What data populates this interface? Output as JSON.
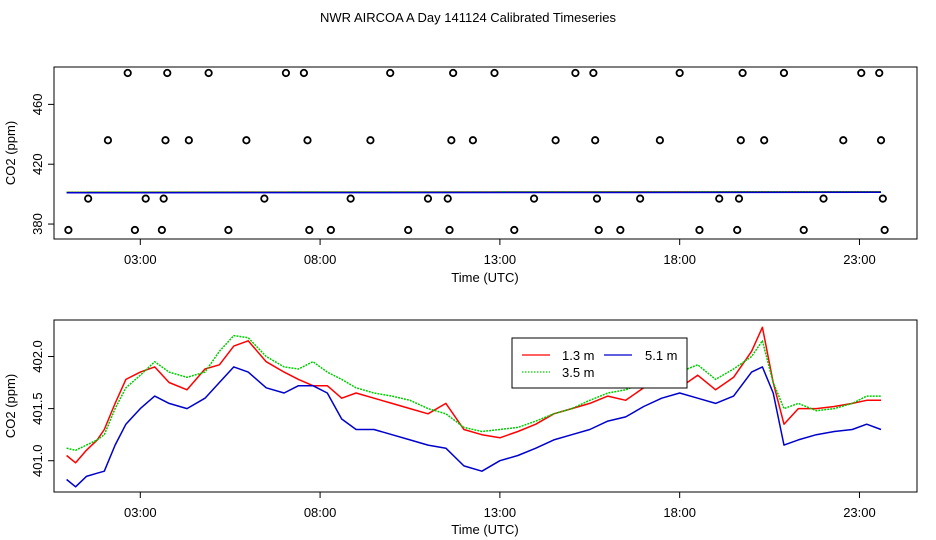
{
  "title": "NWR AIRCOA A  Day 141124  Calibrated Timeseries",
  "chart_data": [
    {
      "type": "scatter",
      "name": "top-panel",
      "xlabel": "Time (UTC)",
      "ylabel": "CO2 (ppm)",
      "xlim": [
        0.6,
        24.6
      ],
      "ylim": [
        370,
        485
      ],
      "xticks": [
        3,
        8,
        13,
        18,
        23
      ],
      "xtick_labels": [
        "03:00",
        "08:00",
        "13:00",
        "18:00",
        "23:00"
      ],
      "yticks": [
        380,
        420,
        460
      ],
      "ytick_labels": [
        "380",
        "420",
        "460"
      ],
      "scatter_points": [
        [
          1.0,
          376
        ],
        [
          1.55,
          397
        ],
        [
          2.1,
          436
        ],
        [
          2.65,
          481
        ],
        [
          2.85,
          376
        ],
        [
          3.15,
          397
        ],
        [
          3.6,
          376
        ],
        [
          3.65,
          397
        ],
        [
          3.7,
          436
        ],
        [
          3.75,
          481
        ],
        [
          4.35,
          436
        ],
        [
          4.9,
          481
        ],
        [
          5.45,
          376
        ],
        [
          5.95,
          436
        ],
        [
          6.45,
          397
        ],
        [
          7.05,
          481
        ],
        [
          7.55,
          481
        ],
        [
          7.65,
          436
        ],
        [
          7.7,
          376
        ],
        [
          8.3,
          376
        ],
        [
          8.85,
          397
        ],
        [
          9.4,
          436
        ],
        [
          9.95,
          481
        ],
        [
          10.45,
          376
        ],
        [
          11.0,
          397
        ],
        [
          11.55,
          397
        ],
        [
          11.6,
          376
        ],
        [
          11.65,
          436
        ],
        [
          11.7,
          481
        ],
        [
          12.25,
          436
        ],
        [
          12.85,
          481
        ],
        [
          13.4,
          376
        ],
        [
          13.95,
          397
        ],
        [
          14.55,
          436
        ],
        [
          15.1,
          481
        ],
        [
          15.6,
          481
        ],
        [
          15.65,
          436
        ],
        [
          15.7,
          397
        ],
        [
          15.75,
          376
        ],
        [
          16.35,
          376
        ],
        [
          16.9,
          397
        ],
        [
          17.45,
          436
        ],
        [
          18.0,
          481
        ],
        [
          18.55,
          376
        ],
        [
          19.1,
          397
        ],
        [
          19.6,
          376
        ],
        [
          19.65,
          397
        ],
        [
          19.7,
          436
        ],
        [
          19.75,
          481
        ],
        [
          20.35,
          436
        ],
        [
          20.9,
          481
        ],
        [
          21.45,
          376
        ],
        [
          22.0,
          397
        ],
        [
          22.55,
          436
        ],
        [
          23.05,
          481
        ],
        [
          23.55,
          481
        ],
        [
          23.6,
          436
        ],
        [
          23.65,
          397
        ],
        [
          23.7,
          376
        ]
      ],
      "flat_series": [
        {
          "name": "1.3 m",
          "color": "#ff0000",
          "x": [
            0.95,
            23.6
          ],
          "values": [
            401.2,
            401.6
          ]
        },
        {
          "name": "3.5 m",
          "color": "#00cc00",
          "x": [
            0.95,
            23.6
          ],
          "values": [
            401.3,
            401.6
          ]
        },
        {
          "name": "5.1 m",
          "color": "#0000cc",
          "x": [
            0.95,
            23.6
          ],
          "values": [
            400.9,
            401.2
          ]
        }
      ]
    },
    {
      "type": "line",
      "name": "bottom-panel",
      "xlabel": "Time (UTC)",
      "ylabel": "CO2 (ppm)",
      "xlim": [
        0.6,
        24.6
      ],
      "ylim": [
        400.7,
        402.35
      ],
      "xticks": [
        3,
        8,
        13,
        18,
        23
      ],
      "xtick_labels": [
        "03:00",
        "08:00",
        "13:00",
        "18:00",
        "23:00"
      ],
      "yticks": [
        401.0,
        401.5,
        402.0
      ],
      "ytick_labels": [
        "401.0",
        "401.5",
        "402.0"
      ],
      "legend_position": "top-center",
      "series": [
        {
          "name": "1.3 m",
          "color": "#ff0000",
          "x": [
            0.95,
            1.2,
            1.5,
            1.8,
            2.0,
            2.3,
            2.6,
            3.0,
            3.4,
            3.8,
            4.3,
            4.8,
            5.2,
            5.6,
            6.0,
            6.5,
            7.0,
            7.4,
            7.8,
            8.2,
            8.6,
            9.0,
            9.5,
            10.0,
            10.5,
            11.0,
            11.5,
            12.0,
            12.5,
            13.0,
            13.5,
            14.0,
            14.5,
            15.0,
            15.5,
            16.0,
            16.5,
            17.0,
            17.5,
            18.0,
            18.5,
            19.0,
            19.5,
            20.0,
            20.3,
            20.6,
            20.9,
            21.3,
            21.8,
            22.3,
            22.8,
            23.2,
            23.6
          ],
          "values": [
            401.05,
            400.98,
            401.1,
            401.2,
            401.3,
            401.55,
            401.78,
            401.85,
            401.9,
            401.75,
            401.68,
            401.88,
            401.92,
            402.1,
            402.15,
            401.95,
            401.85,
            401.78,
            401.72,
            401.72,
            401.6,
            401.65,
            401.6,
            401.55,
            401.5,
            401.45,
            401.55,
            401.3,
            401.25,
            401.22,
            401.28,
            401.35,
            401.45,
            401.5,
            401.55,
            401.62,
            401.58,
            401.7,
            401.78,
            401.7,
            401.82,
            401.68,
            401.8,
            402.05,
            402.28,
            401.75,
            401.35,
            401.5,
            401.5,
            401.52,
            401.55,
            401.58,
            401.58
          ]
        },
        {
          "name": "3.5 m",
          "color": "#00cc00",
          "x": [
            0.95,
            1.2,
            1.5,
            1.8,
            2.0,
            2.3,
            2.6,
            3.0,
            3.4,
            3.8,
            4.3,
            4.8,
            5.2,
            5.6,
            6.0,
            6.5,
            7.0,
            7.4,
            7.8,
            8.2,
            8.6,
            9.0,
            9.5,
            10.0,
            10.5,
            11.0,
            11.5,
            12.0,
            12.5,
            13.0,
            13.5,
            14.0,
            14.5,
            15.0,
            15.5,
            16.0,
            16.5,
            17.0,
            17.5,
            18.0,
            18.5,
            19.0,
            19.5,
            20.0,
            20.3,
            20.6,
            20.9,
            21.3,
            21.8,
            22.3,
            22.8,
            23.2,
            23.6
          ],
          "values": [
            401.12,
            401.1,
            401.15,
            401.2,
            401.25,
            401.5,
            401.7,
            401.82,
            401.95,
            401.85,
            401.8,
            401.85,
            402.05,
            402.2,
            402.18,
            402.0,
            401.9,
            401.88,
            401.95,
            401.85,
            401.78,
            401.7,
            401.65,
            401.62,
            401.58,
            401.5,
            401.45,
            401.32,
            401.28,
            401.3,
            401.32,
            401.38,
            401.45,
            401.5,
            401.58,
            401.65,
            401.68,
            401.75,
            401.85,
            401.85,
            401.92,
            401.78,
            401.88,
            402.0,
            402.15,
            401.75,
            401.5,
            401.55,
            401.48,
            401.5,
            401.55,
            401.62,
            401.62
          ]
        },
        {
          "name": "5.1 m",
          "color": "#0000cc",
          "x": [
            0.95,
            1.2,
            1.5,
            1.8,
            2.0,
            2.3,
            2.6,
            3.0,
            3.4,
            3.8,
            4.3,
            4.8,
            5.2,
            5.6,
            6.0,
            6.5,
            7.0,
            7.4,
            7.8,
            8.2,
            8.6,
            9.0,
            9.5,
            10.0,
            10.5,
            11.0,
            11.5,
            12.0,
            12.5,
            13.0,
            13.5,
            14.0,
            14.5,
            15.0,
            15.5,
            16.0,
            16.5,
            17.0,
            17.5,
            18.0,
            18.5,
            19.0,
            19.5,
            20.0,
            20.3,
            20.6,
            20.9,
            21.3,
            21.8,
            22.3,
            22.8,
            23.2,
            23.6
          ],
          "values": [
            400.82,
            400.75,
            400.85,
            400.88,
            400.9,
            401.15,
            401.35,
            401.5,
            401.62,
            401.55,
            401.5,
            401.6,
            401.75,
            401.9,
            401.85,
            401.7,
            401.65,
            401.72,
            401.72,
            401.65,
            401.4,
            401.3,
            401.3,
            401.25,
            401.2,
            401.15,
            401.12,
            400.95,
            400.9,
            401.0,
            401.05,
            401.12,
            401.2,
            401.25,
            401.3,
            401.38,
            401.42,
            401.52,
            401.6,
            401.65,
            401.6,
            401.55,
            401.62,
            401.85,
            401.9,
            401.65,
            401.15,
            401.2,
            401.25,
            401.28,
            401.3,
            401.35,
            401.3
          ]
        }
      ]
    }
  ]
}
